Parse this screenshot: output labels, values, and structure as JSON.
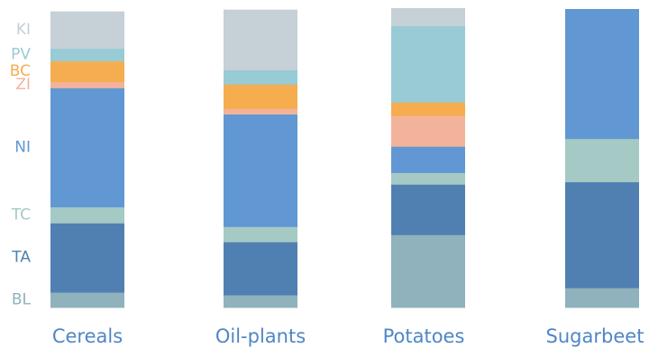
{
  "chart_data": {
    "type": "bar",
    "stacked": true,
    "normalized": true,
    "categories": [
      "Cereals",
      "Oil-plants",
      "Potatoes",
      "Sugarbeet"
    ],
    "series": [
      {
        "name": "BL",
        "color": "#8fb2bd",
        "values": [
          5.1,
          4.2,
          24.4,
          6.6
        ]
      },
      {
        "name": "TA",
        "color": "#5080b1",
        "values": [
          23.2,
          17.8,
          16.9,
          35.5
        ]
      },
      {
        "name": "TC",
        "color": "#a5c9c4",
        "values": [
          5.4,
          5.1,
          3.9,
          14.5
        ]
      },
      {
        "name": "NI",
        "color": "#6198d3",
        "values": [
          39.9,
          37.7,
          8.8,
          43.4
        ]
      },
      {
        "name": "ZI",
        "color": "#f3b39a",
        "values": [
          2.1,
          1.8,
          10.3,
          0
        ]
      },
      {
        "name": "BC",
        "color": "#f5ad4f",
        "values": [
          6.9,
          8.2,
          4.5,
          0
        ]
      },
      {
        "name": "PV",
        "color": "#98cbd6",
        "values": [
          4.2,
          4.8,
          25.6,
          0
        ]
      },
      {
        "name": "KI",
        "color": "#c5d0d7",
        "values": [
          12.4,
          20.2,
          5.9,
          0
        ]
      }
    ],
    "ylim": [
      0,
      100
    ]
  }
}
